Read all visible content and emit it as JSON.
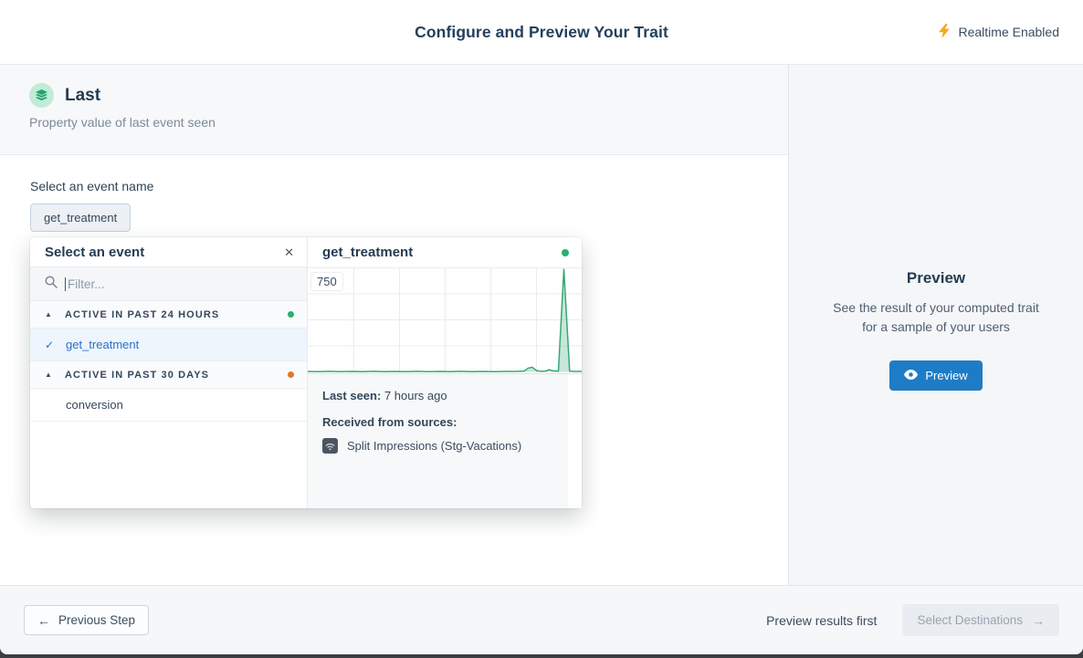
{
  "header": {
    "title": "Configure and Preview Your Trait",
    "realtime_label": "Realtime Enabled"
  },
  "trait": {
    "name": "Last",
    "description": "Property value of last event seen"
  },
  "event_select": {
    "label": "Select an event name",
    "selected_chip": "get_treatment"
  },
  "popup": {
    "title": "Select an event",
    "filter_placeholder": "Filter...",
    "groups": [
      {
        "label": "ACTIVE IN PAST 24 HOURS",
        "status_color": "#27b06e",
        "items": [
          {
            "label": "get_treatment",
            "selected": true
          }
        ]
      },
      {
        "label": "ACTIVE IN PAST 30 DAYS",
        "status_color": "#e2772e",
        "items": [
          {
            "label": "conversion",
            "selected": false
          }
        ]
      }
    ],
    "detail": {
      "title": "get_treatment",
      "status_color": "#27b06e",
      "last_seen_label": "Last seen:",
      "last_seen_value": "7 hours ago",
      "sources_label": "Received from sources:",
      "source_name": "Split Impressions (Stg-Vacations)"
    }
  },
  "chart_data": {
    "type": "area",
    "title": "get_treatment",
    "ylabel": "",
    "xlabel": "",
    "ylim": [
      0,
      750
    ],
    "y_max_label": "750",
    "grid": true,
    "line_color": "#36a876",
    "fill_color": "rgba(54,168,118,0.28)",
    "points": [
      [
        0,
        3
      ],
      [
        4,
        2
      ],
      [
        8,
        4
      ],
      [
        12,
        2
      ],
      [
        16,
        3
      ],
      [
        20,
        2
      ],
      [
        24,
        4
      ],
      [
        28,
        2
      ],
      [
        32,
        3
      ],
      [
        36,
        2
      ],
      [
        40,
        4
      ],
      [
        44,
        2
      ],
      [
        48,
        3
      ],
      [
        52,
        2
      ],
      [
        56,
        4
      ],
      [
        60,
        2
      ],
      [
        64,
        3
      ],
      [
        68,
        2
      ],
      [
        72,
        3
      ],
      [
        76,
        3
      ],
      [
        79,
        6
      ],
      [
        80.5,
        28
      ],
      [
        82,
        34
      ],
      [
        83.5,
        10
      ],
      [
        85,
        4
      ],
      [
        87,
        6
      ],
      [
        88,
        16
      ],
      [
        89.5,
        8
      ],
      [
        91.5,
        5
      ],
      [
        93.5,
        750
      ],
      [
        95.6,
        5
      ],
      [
        97.5,
        3
      ],
      [
        100,
        3
      ]
    ]
  },
  "sidebar": {
    "title": "Preview",
    "description": "See the result of your computed trait for a sample of your users",
    "button_label": "Preview"
  },
  "footer": {
    "previous_label": "Previous Step",
    "hint": "Preview results first",
    "next_label": "Select Destinations"
  },
  "icons": {
    "close": "✕",
    "collapse_caret": "▲",
    "selected_check": "✓",
    "back_arrow": "←",
    "forward_arrow": "→"
  },
  "colors": {
    "accent_blue": "#1e7cc7",
    "navy_text": "#243c53",
    "chart_green": "#36a876",
    "active_green": "#27b06e",
    "active_orange": "#e2772e",
    "lightning_yellow": "#f6a821"
  }
}
